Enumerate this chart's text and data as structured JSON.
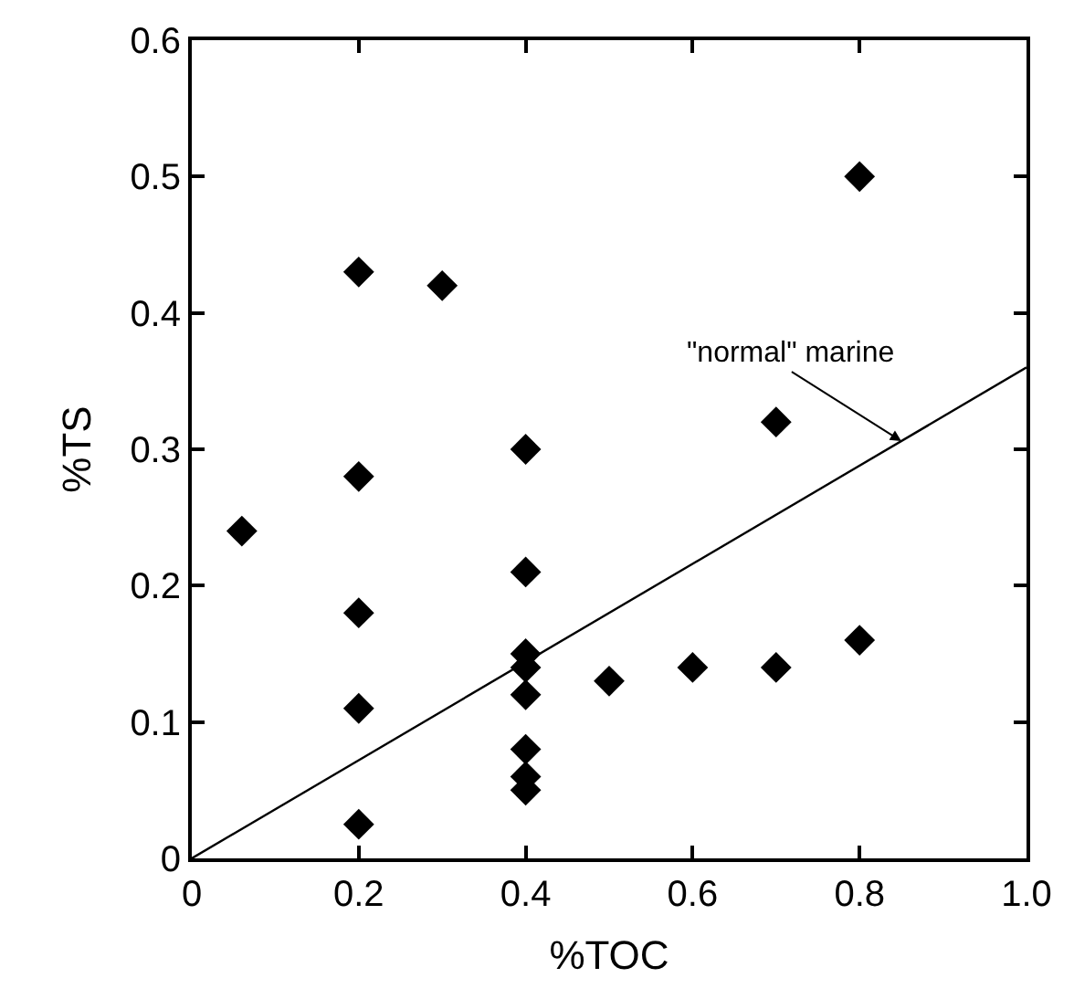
{
  "chart_data": {
    "type": "scatter",
    "xlabel": "%TOC",
    "ylabel": "%TS",
    "xlim": [
      0,
      1.0
    ],
    "ylim": [
      0,
      0.6
    ],
    "xticks": [
      0,
      0.2,
      0.4,
      0.6,
      0.8,
      {
        "value": 1.0,
        "label": "1.0"
      }
    ],
    "yticks": [
      0,
      0.1,
      0.2,
      0.3,
      0.4,
      0.5,
      0.6
    ],
    "marker": "diamond",
    "series": [
      {
        "color": "#000000",
        "x": [
          0.06,
          0.2,
          0.2,
          0.2,
          0.2,
          0.2,
          0.3,
          0.4,
          0.4,
          0.4,
          0.4,
          0.4,
          0.4,
          0.4,
          0.4,
          0.5,
          0.6,
          0.7,
          0.7,
          0.8,
          0.8
        ],
        "values": [
          0.24,
          0.43,
          0.28,
          0.18,
          0.11,
          0.025,
          0.42,
          0.3,
          0.21,
          0.15,
          0.14,
          0.12,
          0.08,
          0.06,
          0.05,
          0.13,
          0.14,
          0.32,
          0.14,
          0.5,
          0.16
        ]
      },
      {
        "type": "line",
        "color": "#000000",
        "x": [
          0,
          1.0
        ],
        "values": [
          0,
          0.36
        ],
        "marker": "none",
        "line_style": "solid"
      }
    ],
    "annotations": [
      {
        "text": "\"normal\" marine",
        "x": 0.85,
        "y": 0.306
      }
    ]
  }
}
